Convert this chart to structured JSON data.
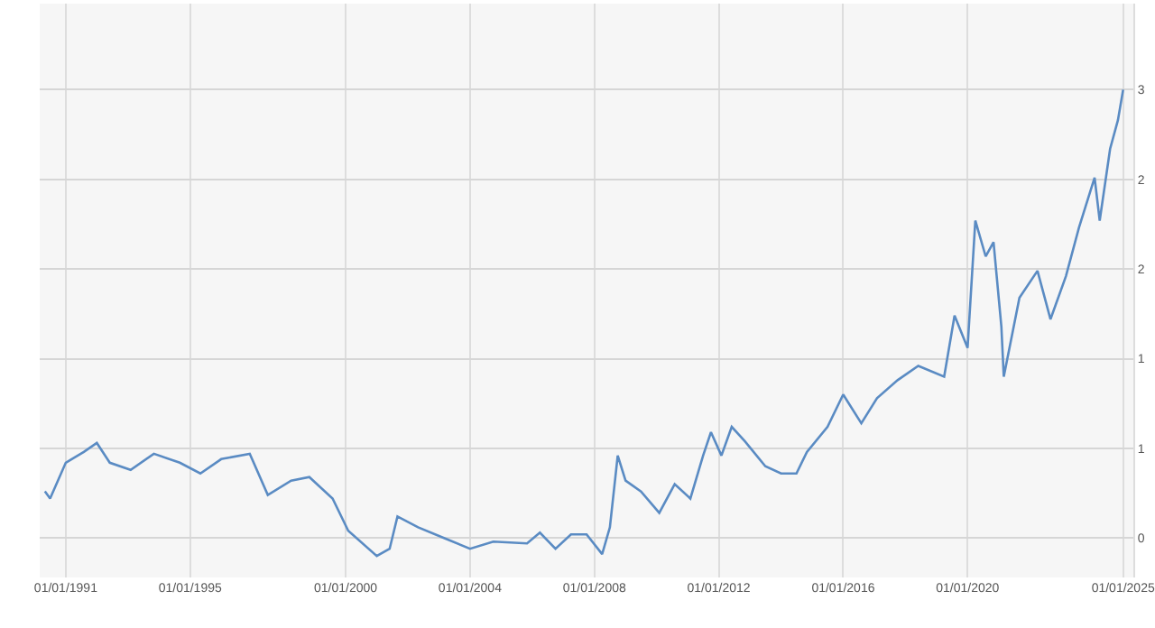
{
  "chart_data": {
    "type": "line",
    "grid": true,
    "marker": "none",
    "line_style": "solid",
    "xlim": [
      "1990-03",
      "2025-05"
    ],
    "xticks": [
      {
        "value": "1991-01-01",
        "label": "01/01/1991"
      },
      {
        "value": "1995-01-01",
        "label": "01/01/1995"
      },
      {
        "value": "2000-01-01",
        "label": "01/01/2000"
      },
      {
        "value": "2004-01-01",
        "label": "01/01/2004"
      },
      {
        "value": "2008-01-01",
        "label": "01/01/2008"
      },
      {
        "value": "2012-01-01",
        "label": "01/01/2012"
      },
      {
        "value": "2016-01-01",
        "label": "01/01/2016"
      },
      {
        "value": "2020-01-01",
        "label": "01/01/2020"
      },
      {
        "value": "2025-01-01",
        "label": "01/01/2025"
      }
    ],
    "ylim": [
      0.28,
      3.48
    ],
    "yticks": [
      {
        "value": 0.5,
        "label": "0"
      },
      {
        "value": 1,
        "label": "1"
      },
      {
        "value": 1.5,
        "label": "1"
      },
      {
        "value": 2,
        "label": "2"
      },
      {
        "value": 2.5,
        "label": "2"
      },
      {
        "value": 3,
        "label": "3"
      }
    ],
    "x": [
      "1990-05",
      "1990-07",
      "1991-01",
      "1991-08",
      "1992-01",
      "1992-06",
      "1993-02",
      "1993-11",
      "1994-09",
      "1995-05",
      "1996-01",
      "1996-12",
      "1997-07",
      "1998-04",
      "1998-11",
      "1999-08",
      "2000-02",
      "2001-01",
      "2001-06",
      "2001-09",
      "2002-05",
      "2003-03",
      "2004-01",
      "2004-10",
      "2005-11",
      "2006-04",
      "2006-10",
      "2007-04",
      "2007-10",
      "2008-04",
      "2008-07",
      "2008-10",
      "2009-01",
      "2009-07",
      "2010-02",
      "2010-08",
      "2011-02",
      "2011-07",
      "2011-10",
      "2012-02",
      "2012-06",
      "2012-11",
      "2013-07",
      "2014-01",
      "2014-07",
      "2014-11",
      "2015-07",
      "2016-01",
      "2016-08",
      "2017-02",
      "2017-10",
      "2018-06",
      "2019-04",
      "2019-08",
      "2020-01",
      "2020-04",
      "2020-08",
      "2020-11",
      "2021-02",
      "2021-03",
      "2021-09",
      "2022-04",
      "2022-09",
      "2023-03",
      "2023-08",
      "2024-02",
      "2024-04",
      "2024-08",
      "2024-11",
      "2025-01"
    ],
    "series": [
      {
        "color": "#5a8bc3",
        "values": [
          0.76,
          0.72,
          0.92,
          0.98,
          1.03,
          0.92,
          0.88,
          0.97,
          0.92,
          0.86,
          0.94,
          0.97,
          0.74,
          0.82,
          0.84,
          0.72,
          0.54,
          0.4,
          0.44,
          0.62,
          0.56,
          0.5,
          0.44,
          0.48,
          0.47,
          0.53,
          0.44,
          0.52,
          0.52,
          0.41,
          0.56,
          0.96,
          0.82,
          0.76,
          0.64,
          0.8,
          0.72,
          0.96,
          1.09,
          0.96,
          1.12,
          1.04,
          0.9,
          0.86,
          0.86,
          0.98,
          1.12,
          1.3,
          1.14,
          1.28,
          1.38,
          1.46,
          1.4,
          1.74,
          1.56,
          2.27,
          2.07,
          2.15,
          1.68,
          1.4,
          1.84,
          1.99,
          1.72,
          1.96,
          2.23,
          2.51,
          2.27,
          2.67,
          2.83,
          3.0
        ]
      }
    ]
  }
}
